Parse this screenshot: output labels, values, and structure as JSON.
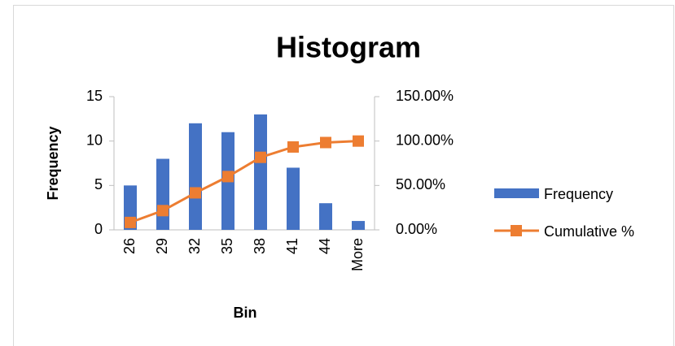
{
  "chart_data": {
    "type": "bar",
    "title": "Histogram",
    "x_label": "Bin",
    "y_label": "Frequency",
    "categories": [
      "26",
      "29",
      "32",
      "35",
      "38",
      "41",
      "44",
      "More"
    ],
    "series": [
      {
        "name": "Frequency",
        "type": "bar",
        "color": "#4472c4",
        "values": [
          5,
          8,
          12,
          11,
          13,
          7,
          3,
          1
        ]
      },
      {
        "name": "Cumulative %",
        "type": "line",
        "axis": "y2",
        "color": "#ed7d31",
        "values": [
          8.33,
          21.67,
          41.67,
          60,
          81.67,
          93.33,
          98.33,
          100
        ]
      }
    ],
    "ylim": [
      0,
      15
    ],
    "yticks": [
      0,
      5,
      10,
      15
    ],
    "y2lim": [
      0,
      150
    ],
    "y2ticks": [
      {
        "value": 0,
        "label": "0.00%"
      },
      {
        "value": 50,
        "label": "50.00%"
      },
      {
        "value": 100,
        "label": "100.00%"
      },
      {
        "value": 150,
        "label": "150.00%"
      }
    ],
    "grid": false,
    "legend": "right"
  }
}
